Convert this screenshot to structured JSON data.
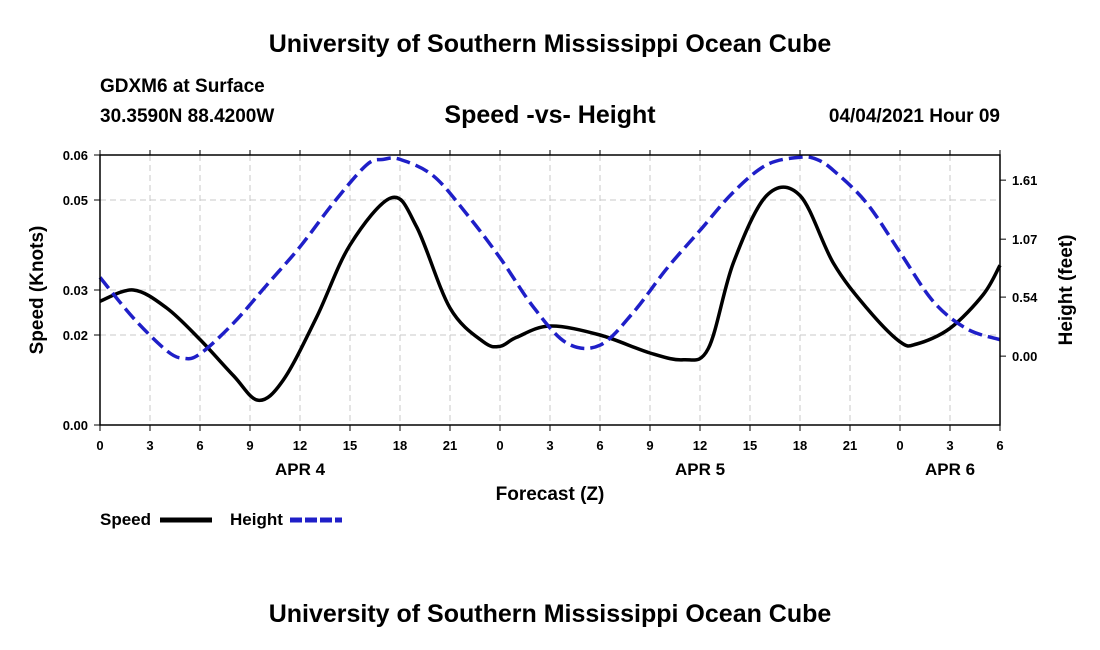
{
  "header": {
    "title": "University of Southern Mississippi Ocean Cube",
    "station": "GDXM6 at Surface",
    "latlon": "30.3590N  88.4200W",
    "chart_title": "Speed -vs- Height",
    "datetime": "04/04/2021 Hour 09"
  },
  "footer": {
    "title": "University of Southern Mississippi Ocean Cube"
  },
  "chart_data": {
    "type": "line",
    "title": "Speed -vs- Height",
    "xlabel": "Forecast (Z)",
    "ylabel": "Speed (Knots)",
    "y2label": "Height (feet)",
    "grid": true,
    "xlim": [
      0,
      54
    ],
    "ylim": [
      0,
      0.06
    ],
    "y2lim": [
      -0.63,
      1.84
    ],
    "x_ticks": [
      0,
      3,
      6,
      9,
      12,
      15,
      18,
      21,
      24,
      27,
      30,
      33,
      36,
      39,
      42,
      45,
      48,
      51,
      54
    ],
    "x_tick_labels": [
      "0",
      "3",
      "6",
      "9",
      "12",
      "15",
      "18",
      "21",
      "0",
      "3",
      "6",
      "9",
      "12",
      "15",
      "18",
      "21",
      "0",
      "3",
      "6"
    ],
    "y_ticks": [
      0,
      0.02,
      0.03,
      0.05,
      0.06
    ],
    "y_tick_labels": [
      "0.00",
      "0.02",
      "0.03",
      "0.05",
      "0.06"
    ],
    "y2_ticks": [
      0.0,
      0.54,
      1.07,
      1.61
    ],
    "y2_tick_labels": [
      "0.00",
      "0.54",
      "1.07",
      "1.61"
    ],
    "day_labels": [
      {
        "x": 12,
        "label": "APR 4"
      },
      {
        "x": 36,
        "label": "APR 5"
      },
      {
        "x": 51,
        "label": "APR 6"
      }
    ],
    "legend": {
      "placement": "bottom-left"
    },
    "series": [
      {
        "name": "Speed",
        "axis": "left",
        "color": "#000000",
        "dash": "solid",
        "x": [
          0,
          2,
          4,
          6,
          8,
          9.5,
          11,
          13,
          15,
          17.5,
          19,
          21,
          23,
          24,
          25,
          27,
          30,
          33,
          35,
          36.5,
          38,
          40,
          42,
          44,
          46,
          48,
          49,
          51,
          53,
          54
        ],
        "y": [
          0.0275,
          0.03,
          0.026,
          0.019,
          0.011,
          0.0055,
          0.01,
          0.024,
          0.04,
          0.0505,
          0.044,
          0.026,
          0.0185,
          0.0175,
          0.0195,
          0.022,
          0.02,
          0.016,
          0.0145,
          0.017,
          0.036,
          0.051,
          0.051,
          0.036,
          0.026,
          0.0185,
          0.018,
          0.0215,
          0.029,
          0.0355
        ]
      },
      {
        "name": "Height",
        "axis": "right",
        "color": "#1f1fc8",
        "dash": "dashed",
        "x": [
          0,
          2,
          4,
          5,
          6,
          8,
          10,
          12,
          14,
          16,
          17,
          18,
          20,
          22,
          24,
          26,
          28,
          30,
          32,
          34,
          36,
          38,
          40,
          42,
          43,
          44,
          46,
          48,
          50,
          52,
          54
        ],
        "y": [
          0.72,
          0.35,
          0.05,
          -0.02,
          0.02,
          0.3,
          0.65,
          1.0,
          1.4,
          1.75,
          1.8,
          1.8,
          1.65,
          1.3,
          0.9,
          0.45,
          0.12,
          0.1,
          0.4,
          0.8,
          1.15,
          1.5,
          1.75,
          1.82,
          1.8,
          1.7,
          1.4,
          0.95,
          0.5,
          0.25,
          0.15
        ]
      }
    ]
  }
}
